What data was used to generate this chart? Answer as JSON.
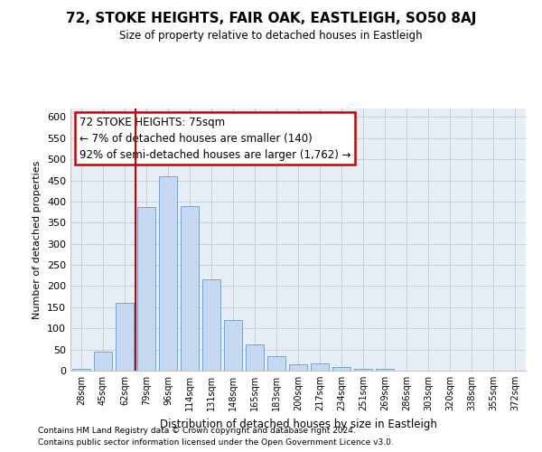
{
  "title": "72, STOKE HEIGHTS, FAIR OAK, EASTLEIGH, SO50 8AJ",
  "subtitle": "Size of property relative to detached houses in Eastleigh",
  "xlabel": "Distribution of detached houses by size in Eastleigh",
  "ylabel": "Number of detached properties",
  "footer_line1": "Contains HM Land Registry data © Crown copyright and database right 2024.",
  "footer_line2": "Contains public sector information licensed under the Open Government Licence v3.0.",
  "categories": [
    "28sqm",
    "45sqm",
    "62sqm",
    "79sqm",
    "96sqm",
    "114sqm",
    "131sqm",
    "148sqm",
    "165sqm",
    "183sqm",
    "200sqm",
    "217sqm",
    "234sqm",
    "251sqm",
    "269sqm",
    "286sqm",
    "303sqm",
    "320sqm",
    "338sqm",
    "355sqm",
    "372sqm"
  ],
  "values": [
    5,
    45,
    160,
    387,
    460,
    390,
    215,
    120,
    63,
    35,
    16,
    18,
    9,
    4,
    4,
    1,
    0,
    0,
    0,
    0,
    0
  ],
  "bar_color": "#c6d9f0",
  "bar_edge_color": "#6699cc",
  "grid_color": "#c8d0dc",
  "background_color": "#e8eef6",
  "annotation_box_color": "#ffffff",
  "annotation_border_color": "#cc0000",
  "red_line_color": "#cc0000",
  "ylim": [
    0,
    620
  ],
  "yticks": [
    0,
    50,
    100,
    150,
    200,
    250,
    300,
    350,
    400,
    450,
    500,
    550,
    600
  ],
  "ann_line1": "72 STOKE HEIGHTS: 75sqm",
  "ann_line2": "← 7% of detached houses are smaller (140)",
  "ann_line3": "92% of semi-detached houses are larger (1,762) →"
}
